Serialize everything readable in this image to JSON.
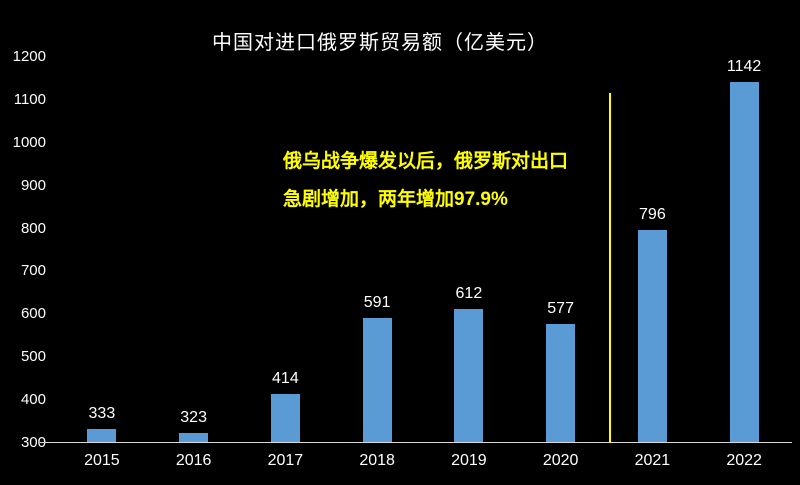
{
  "chart_data": {
    "type": "bar",
    "title": "中国对进口俄罗斯贸易额（亿美元）",
    "categories": [
      "2015",
      "2016",
      "2017",
      "2018",
      "2019",
      "2020",
      "2021",
      "2022"
    ],
    "values": [
      333,
      323,
      414,
      591,
      612,
      577,
      796,
      1142
    ],
    "ylim": [
      300,
      1200
    ],
    "yticks": [
      300,
      400,
      500,
      600,
      700,
      800,
      900,
      1000,
      1100,
      1200
    ],
    "bar_color": "#5B9BD5",
    "background_color": "#000000",
    "text_color": "#FFFFFF",
    "axis_line_color": "#D9D9D9",
    "grid": false,
    "legend": false,
    "annotation": {
      "lines": [
        "俄乌战争爆发以后，俄罗斯对出口",
        "急剧增加，两年增加97.9%"
      ],
      "color": "#FFFF00"
    },
    "divider_line": {
      "color": "#FFFF00",
      "between": [
        "2020",
        "2021"
      ]
    }
  }
}
